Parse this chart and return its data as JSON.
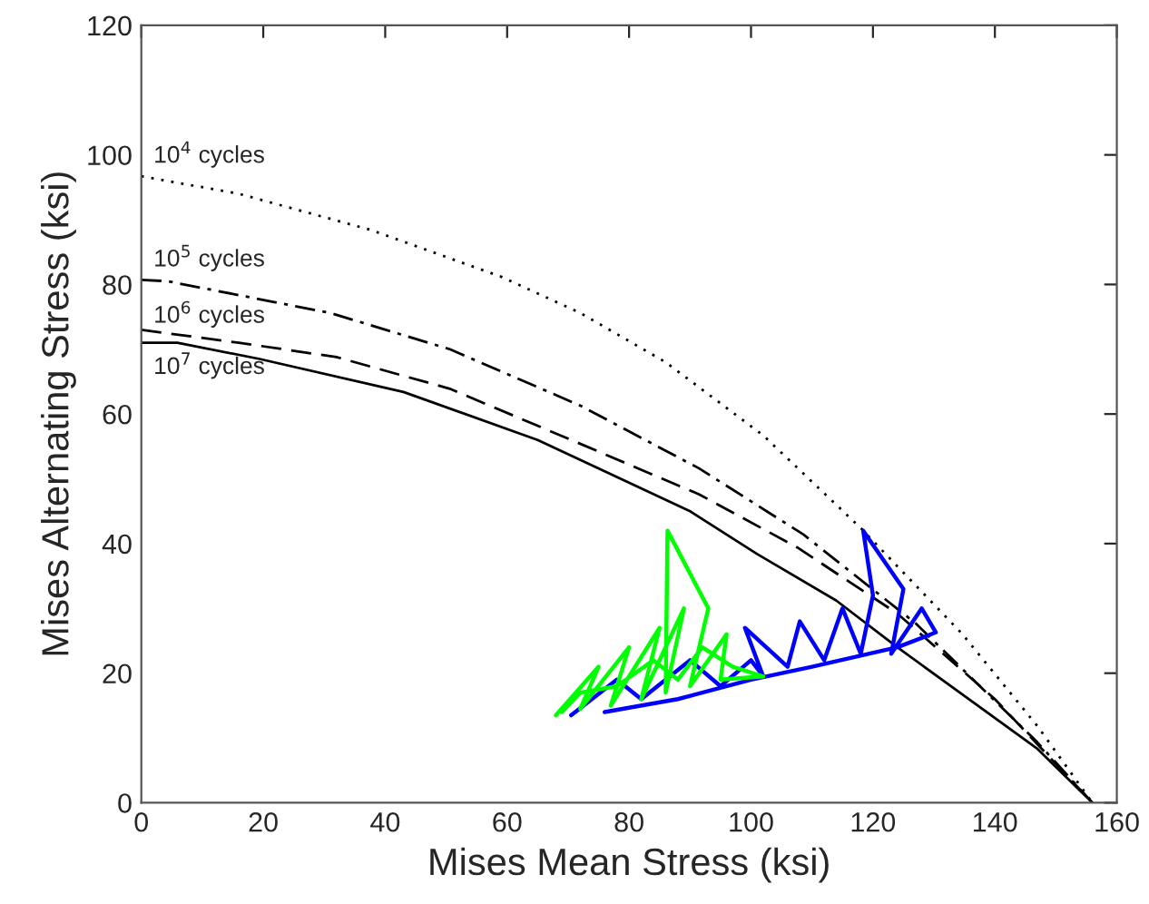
{
  "chart_data": {
    "type": "line",
    "xlabel": "Mises Mean Stress (ksi)",
    "ylabel": "Mises Alternating Stress (ksi)",
    "xlim": [
      0,
      160
    ],
    "ylim": [
      0,
      120
    ],
    "xticks": [
      0,
      20,
      40,
      60,
      80,
      100,
      120,
      140,
      160
    ],
    "yticks": [
      0,
      20,
      40,
      60,
      80,
      100,
      120
    ],
    "grid": false,
    "legend": false,
    "marker": "none",
    "series": [
      {
        "name": "10$^{4}$ cycles",
        "color": "#000000",
        "line_style": "dotted",
        "x": [
          0,
          16,
          37.7,
          59,
          72,
          86,
          102,
          118,
          134.6,
          147,
          156
        ],
        "values": [
          96.7,
          94,
          88.4,
          81.2,
          75.6,
          68,
          56.7,
          42.4,
          26.1,
          11.8,
          0
        ]
      },
      {
        "name": "10$^{5}$ cycles",
        "color": "#000000",
        "line_style": "dashdot",
        "x": [
          0,
          4.3,
          31,
          50.6,
          72,
          91.5,
          108.6,
          127,
          147,
          156
        ],
        "values": [
          80.7,
          80.5,
          75.6,
          70,
          61.3,
          51.6,
          41.4,
          27.7,
          9.3,
          0
        ]
      },
      {
        "name": "10$^{6}$ cycles",
        "color": "#000000",
        "line_style": "dashed",
        "x": [
          0,
          16,
          32,
          50.6,
          70,
          91.5,
          107.6,
          124,
          140,
          156
        ],
        "values": [
          73,
          71,
          68.8,
          63.9,
          56.2,
          47.6,
          39.4,
          29.2,
          16,
          0
        ]
      },
      {
        "name": "10$^{7}$ cycles",
        "color": "#000000",
        "line_style": "solid",
        "x": [
          0,
          5.9,
          19.4,
          43,
          65,
          90,
          101,
          114,
          124,
          147,
          156
        ],
        "values": [
          71,
          71,
          68.5,
          63.4,
          56,
          45,
          38.4,
          31.2,
          24,
          8.3,
          0
        ]
      },
      {
        "color": "#0000ff",
        "line_style": "solid",
        "x": [
          70.5,
          78,
          82,
          90,
          95,
          100,
          102,
          99,
          106,
          108,
          112,
          115,
          118,
          120,
          118.4,
          125,
          123,
          128,
          130.3,
          124,
          110,
          100,
          88,
          76
        ],
        "values": [
          13.5,
          19,
          16,
          22,
          18,
          22,
          19.5,
          27,
          21,
          28,
          22,
          30,
          23,
          32,
          42,
          33,
          23,
          30,
          26.3,
          24,
          21,
          19,
          16,
          14
        ]
      },
      {
        "color": "#00ff00",
        "line_style": "solid",
        "x": [
          68,
          75,
          72,
          80,
          77,
          85,
          82,
          89,
          86,
          86.3,
          93,
          90,
          96,
          95,
          102,
          97,
          92,
          88,
          84,
          78,
          72,
          69
        ],
        "values": [
          13.5,
          21,
          14.5,
          24,
          15,
          27,
          16,
          30,
          17,
          42,
          30,
          18,
          26,
          19,
          19.5,
          21,
          24,
          19,
          22,
          18,
          17,
          14
        ]
      }
    ]
  }
}
